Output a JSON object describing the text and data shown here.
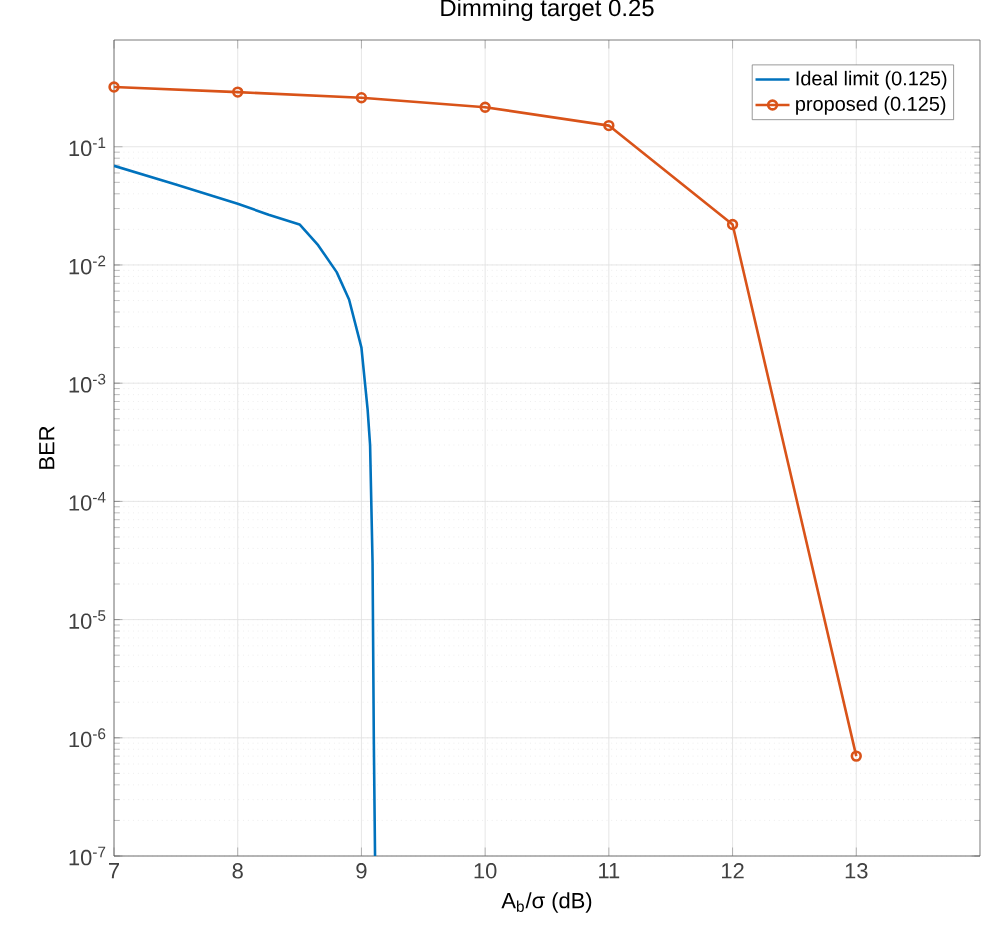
{
  "chart_data": {
    "type": "line",
    "title": "Dimming target 0.25",
    "xlabel": "A$_{b}$/σ (dB)",
    "ylabel": "BER",
    "xlim": [
      7,
      14
    ],
    "xticks": [
      7,
      8,
      9,
      10,
      11,
      12,
      13
    ],
    "ylim": [
      1e-07,
      0.8
    ],
    "yticks": [
      {
        "value": 1e-07,
        "label": "10$^{-7}$"
      },
      {
        "value": 1e-06,
        "label": "10$^{-6}$"
      },
      {
        "value": 1e-05,
        "label": "10$^{-5}$"
      },
      {
        "value": 0.0001,
        "label": "10$^{-4}$"
      },
      {
        "value": 0.001,
        "label": "10$^{-3}$"
      },
      {
        "value": 0.01,
        "label": "10$^{-2}$"
      },
      {
        "value": 0.1,
        "label": "10$^{-1}$"
      }
    ],
    "log": "y",
    "grid": true,
    "legend": "top right",
    "series": [
      {
        "name": "Ideal limit (0.125)",
        "color": "#0072bd",
        "marker": "none",
        "x": [
          7,
          7.5,
          8,
          8.25,
          8.5,
          8.65,
          8.8,
          8.9,
          9.0,
          9.05,
          9.07,
          9.09,
          9.1,
          9.11
        ],
        "values": [
          0.069,
          0.048,
          0.033,
          0.0266,
          0.022,
          0.0147,
          0.0087,
          0.0051,
          0.002,
          0.0006,
          0.0003,
          3e-05,
          1e-06,
          1e-07
        ]
      },
      {
        "name": "proposed (0.125)",
        "color": "#d95319",
        "marker": "circle",
        "x": [
          7,
          8,
          9,
          10,
          11,
          12,
          13
        ],
        "values": [
          0.32,
          0.29,
          0.26,
          0.216,
          0.151,
          0.022,
          7e-07
        ]
      }
    ]
  }
}
